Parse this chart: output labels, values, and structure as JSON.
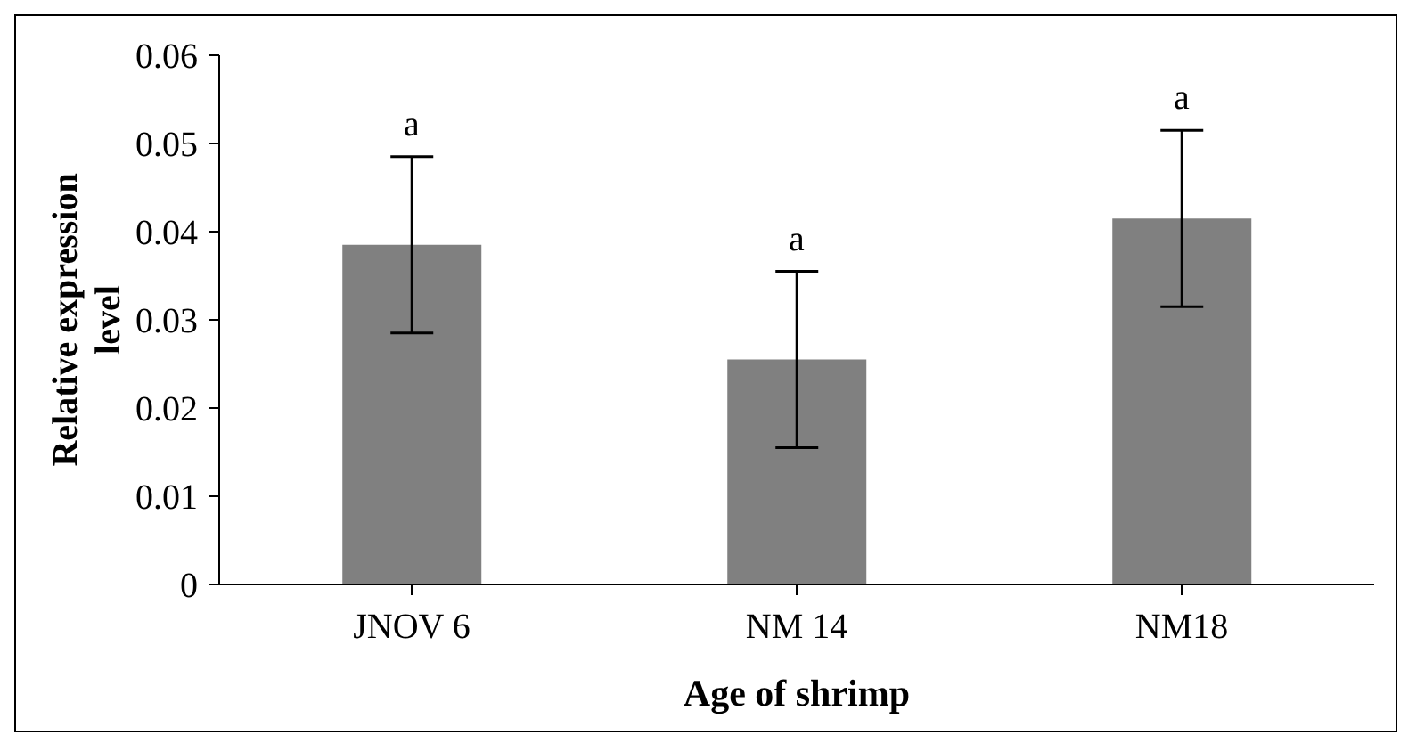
{
  "chart_data": {
    "type": "bar",
    "xlabel": "Age of shrimp",
    "ylabel": "Relative expression level",
    "categories": [
      "JNOV 6",
      "NM 14",
      "NM18"
    ],
    "values": [
      0.0385,
      0.0255,
      0.0415
    ],
    "errors": [
      0.01,
      0.01,
      0.01
    ],
    "color": "#808080",
    "ylim": [
      0,
      0.06
    ],
    "yticks": [
      {
        "value": 0,
        "label": "0"
      },
      {
        "value": 0.01,
        "label": "0.01"
      },
      {
        "value": 0.02,
        "label": "0.02"
      },
      {
        "value": 0.03,
        "label": "0.03"
      },
      {
        "value": 0.04,
        "label": "0.04"
      },
      {
        "value": 0.05,
        "label": "0.05"
      },
      {
        "value": 0.06,
        "label": "0.06"
      }
    ],
    "grid": false,
    "legend": false,
    "annotations": [
      "a",
      "a",
      "a"
    ]
  }
}
